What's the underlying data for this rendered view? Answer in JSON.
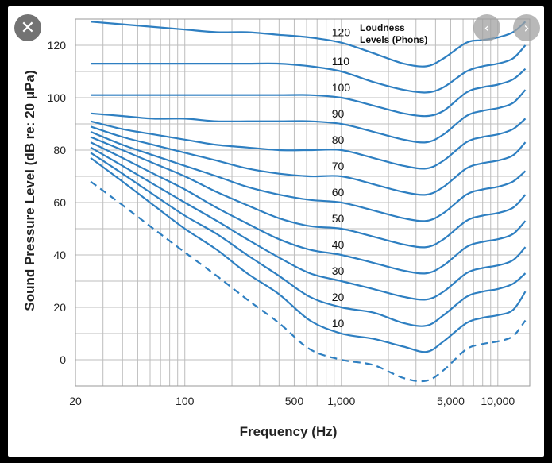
{
  "viewer": {
    "close_icon": "✕",
    "prev_icon": "‹",
    "next_icon": "›"
  },
  "chart_data": {
    "type": "line",
    "title": "",
    "xlabel": "Frequency (Hz)",
    "ylabel": "Sound Pressure Level (dB re: 20 μPa)",
    "x_scale": "log",
    "xlim": [
      20,
      16000
    ],
    "ylim": [
      -10,
      130
    ],
    "x_ticks": [
      20,
      100,
      500,
      1000,
      5000,
      10000
    ],
    "x_tick_labels": [
      "20",
      "100",
      "500",
      "1,000",
      "5,000",
      "10,000"
    ],
    "y_ticks": [
      0,
      20,
      40,
      60,
      80,
      100,
      120
    ],
    "y_tick_labels": [
      "0",
      "20",
      "40",
      "60",
      "80",
      "100",
      "120"
    ],
    "grid": true,
    "legend_title_lines": [
      "Loudness",
      "Levels (Phons)"
    ],
    "line_color": "#2e7fc1",
    "x": [
      25,
      40,
      63,
      100,
      160,
      250,
      400,
      630,
      1000,
      1600,
      2500,
      3500,
      4500,
      6300,
      8000,
      10000,
      12500,
      15000
    ],
    "series": [
      {
        "name": "120",
        "values": [
          129,
          128,
          127,
          126,
          125,
          125,
          124,
          123,
          121,
          117,
          113,
          112,
          115,
          121,
          122,
          123,
          125,
          129
        ]
      },
      {
        "name": "110",
        "values": [
          113,
          113,
          113,
          113,
          113,
          113,
          113,
          112,
          110,
          106,
          103,
          102,
          104,
          110,
          112,
          113,
          115,
          120
        ]
      },
      {
        "name": "100",
        "values": [
          101,
          101,
          101,
          101,
          101,
          101,
          101,
          101,
          100,
          97,
          94,
          93,
          95,
          102,
          104,
          105,
          107,
          111
        ]
      },
      {
        "name": "90",
        "values": [
          94,
          93,
          92,
          92,
          91,
          91,
          91,
          91,
          90,
          87,
          84,
          83,
          86,
          93,
          95,
          96,
          98,
          103
        ]
      },
      {
        "name": "80",
        "values": [
          91,
          88,
          86,
          84,
          82,
          81,
          80,
          80,
          80,
          77,
          74,
          73,
          76,
          83,
          85,
          86,
          88,
          92
        ]
      },
      {
        "name": "70",
        "values": [
          89,
          85,
          82,
          79,
          76,
          73,
          71,
          70,
          70,
          67,
          64,
          63,
          66,
          73,
          75,
          76,
          78,
          83
        ]
      },
      {
        "name": "60",
        "values": [
          87,
          82,
          78,
          74,
          70,
          66,
          63,
          61,
          60,
          57,
          54,
          53,
          56,
          63,
          65,
          66,
          68,
          72
        ]
      },
      {
        "name": "50",
        "values": [
          85,
          80,
          75,
          70,
          64,
          59,
          54,
          51,
          50,
          47,
          44,
          43,
          46,
          53,
          55,
          56,
          58,
          63
        ]
      },
      {
        "name": "40",
        "values": [
          83,
          77,
          71,
          65,
          58,
          52,
          46,
          42,
          40,
          37,
          34,
          33,
          36,
          43,
          45,
          46,
          48,
          53
        ]
      },
      {
        "name": "30",
        "values": [
          81,
          74,
          67,
          60,
          53,
          46,
          39,
          33,
          30,
          27,
          24,
          23,
          26,
          33,
          35,
          36,
          38,
          43
        ]
      },
      {
        "name": "20",
        "values": [
          79,
          71,
          63,
          55,
          48,
          40,
          32,
          24,
          20,
          18,
          14,
          13,
          17,
          24,
          26,
          27,
          29,
          33
        ]
      },
      {
        "name": "10",
        "values": [
          77,
          68,
          59,
          50,
          42,
          33,
          25,
          15,
          10,
          8,
          5,
          3,
          7,
          14,
          16,
          17,
          19,
          26
        ]
      },
      {
        "name": "",
        "dashed": true,
        "values": [
          68,
          59,
          50,
          41,
          32,
          23,
          14,
          4,
          0,
          -2,
          -7,
          -8,
          -4,
          4,
          6,
          7,
          9,
          15
        ]
      }
    ]
  }
}
